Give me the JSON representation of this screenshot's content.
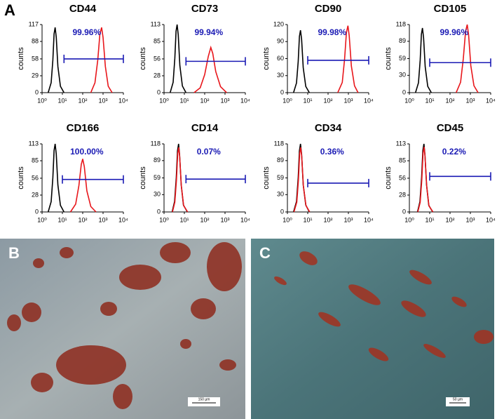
{
  "panels": {
    "A": "A"
  },
  "micrographs": [
    {
      "label": "B",
      "scale_bar": "150 µm"
    },
    {
      "label": "C",
      "scale_bar": "50 µm"
    }
  ],
  "chart_data": [
    {
      "type": "line",
      "title": "CD44",
      "ylabel": "counts",
      "annotation": "99.96%",
      "xscale": "log",
      "xlim": [
        1,
        10000
      ],
      "xticks": [
        {
          "value": 1,
          "label": "10⁰"
        },
        {
          "value": 10,
          "label": "10¹"
        },
        {
          "value": 100,
          "label": "10²"
        },
        {
          "value": 1000,
          "label": "10³"
        },
        {
          "value": 10000,
          "label": "10⁴"
        }
      ],
      "ylim": [
        0,
        117
      ],
      "yticks": [
        0,
        29,
        58,
        88,
        117
      ],
      "gate": {
        "x": [
          12,
          10000
        ],
        "y": 58,
        "color": "#1a1ab4"
      },
      "series": [
        {
          "color": "#000000",
          "x": [
            2,
            2.8,
            3.4,
            3.9,
            4.4,
            5,
            6,
            8,
            12
          ],
          "values": [
            0,
            17,
            56,
            101,
            112,
            95,
            45,
            11,
            0
          ]
        },
        {
          "color": "#e8161b",
          "x": [
            250,
            400,
            550,
            700,
            850,
            1000,
            1300,
            1800,
            2800
          ],
          "values": [
            0,
            17,
            56,
            101,
            112,
            95,
            45,
            11,
            0
          ]
        }
      ]
    },
    {
      "type": "line",
      "title": "CD73",
      "ylabel": "counts",
      "annotation": "99.94%",
      "xscale": "log",
      "xlim": [
        1,
        10000
      ],
      "xticks": [
        {
          "value": 1,
          "label": "10⁰"
        },
        {
          "value": 10,
          "label": "10¹"
        },
        {
          "value": 100,
          "label": "10²"
        },
        {
          "value": 1000,
          "label": "10³"
        },
        {
          "value": 10000,
          "label": "10⁴"
        }
      ],
      "ylim": [
        0,
        113
      ],
      "yticks": [
        0,
        28,
        56,
        85,
        113
      ],
      "gate": {
        "x": [
          12,
          10000
        ],
        "y": 52,
        "color": "#1a1ab4"
      },
      "series": [
        {
          "color": "#000000",
          "x": [
            2,
            2.8,
            3.4,
            3.9,
            4.4,
            5,
            6,
            8,
            12
          ],
          "values": [
            0,
            17,
            57,
            102,
            113,
            96,
            45,
            11,
            0
          ]
        },
        {
          "color": "#e8161b",
          "x": [
            30,
            60,
            100,
            150,
            200,
            250,
            350,
            600,
            1200
          ],
          "values": [
            0,
            8,
            30,
            60,
            75,
            65,
            35,
            10,
            0
          ]
        }
      ]
    },
    {
      "type": "line",
      "title": "CD90",
      "ylabel": "counts",
      "annotation": "99.98%",
      "xscale": "log",
      "xlim": [
        1,
        10000
      ],
      "xticks": [
        {
          "value": 1,
          "label": "10⁰"
        },
        {
          "value": 10,
          "label": "10¹"
        },
        {
          "value": 100,
          "label": "10²"
        },
        {
          "value": 1000,
          "label": "10³"
        },
        {
          "value": 10000,
          "label": "10⁴"
        }
      ],
      "ylim": [
        0,
        120
      ],
      "yticks": [
        0,
        30,
        60,
        90,
        120
      ],
      "gate": {
        "x": [
          10,
          10000
        ],
        "y": 57,
        "color": "#1a1ab4"
      },
      "series": [
        {
          "color": "#000000",
          "x": [
            2,
            2.8,
            3.4,
            3.9,
            4.4,
            5,
            6,
            8,
            12
          ],
          "values": [
            0,
            17,
            55,
            99,
            110,
            94,
            44,
            11,
            0
          ]
        },
        {
          "color": "#e8161b",
          "x": [
            300,
            500,
            650,
            800,
            950,
            1100,
            1400,
            2000,
            3000
          ],
          "values": [
            0,
            18,
            59,
            106,
            118,
            100,
            47,
            12,
            0
          ]
        }
      ]
    },
    {
      "type": "line",
      "title": "CD105",
      "ylabel": "counts",
      "annotation": "99.96%",
      "xscale": "log",
      "xlim": [
        1,
        10000
      ],
      "xticks": [
        {
          "value": 1,
          "label": "10⁰"
        },
        {
          "value": 10,
          "label": "10¹"
        },
        {
          "value": 100,
          "label": "10²"
        },
        {
          "value": 1000,
          "label": "10³"
        },
        {
          "value": 10000,
          "label": "10⁴"
        }
      ],
      "ylim": [
        0,
        118
      ],
      "yticks": [
        0,
        30,
        59,
        89,
        118
      ],
      "gate": {
        "x": [
          10,
          10000
        ],
        "y": 52,
        "color": "#1a1ab4"
      },
      "series": [
        {
          "color": "#000000",
          "x": [
            2,
            2.8,
            3.4,
            3.9,
            4.4,
            5,
            6,
            8,
            12
          ],
          "values": [
            0,
            17,
            56,
            101,
            112,
            95,
            45,
            11,
            0
          ]
        },
        {
          "color": "#e8161b",
          "x": [
            200,
            330,
            450,
            580,
            700,
            820,
            1050,
            1500,
            2400
          ],
          "values": [
            0,
            18,
            59,
            106,
            118,
            100,
            47,
            12,
            0
          ]
        }
      ]
    },
    {
      "type": "line",
      "title": "CD166",
      "ylabel": "counts",
      "annotation": "100.00%",
      "xscale": "log",
      "xlim": [
        1,
        10000
      ],
      "xticks": [
        {
          "value": 1,
          "label": "10⁰"
        },
        {
          "value": 10,
          "label": "10¹"
        },
        {
          "value": 100,
          "label": "10²"
        },
        {
          "value": 1000,
          "label": "10³"
        },
        {
          "value": 10000,
          "label": "10⁴"
        }
      ],
      "ylim": [
        0,
        113
      ],
      "yticks": [
        0,
        28,
        56,
        85,
        113
      ],
      "gate": {
        "x": [
          10,
          10000
        ],
        "y": 54,
        "color": "#1a1ab4"
      },
      "series": [
        {
          "color": "#000000",
          "x": [
            2,
            2.8,
            3.4,
            3.9,
            4.4,
            5,
            6,
            8,
            12
          ],
          "values": [
            0,
            17,
            57,
            102,
            113,
            96,
            45,
            11,
            0
          ]
        },
        {
          "color": "#e8161b",
          "x": [
            25,
            45,
            65,
            85,
            100,
            120,
            160,
            250,
            450
          ],
          "values": [
            0,
            13,
            44,
            79,
            88,
            75,
            35,
            9,
            0
          ]
        }
      ]
    },
    {
      "type": "line",
      "title": "CD14",
      "ylabel": "counts",
      "annotation": "0.07%",
      "xscale": "log",
      "xlim": [
        1,
        10000
      ],
      "xticks": [
        {
          "value": 1,
          "label": "10⁰"
        },
        {
          "value": 10,
          "label": "10¹"
        },
        {
          "value": 100,
          "label": "10²"
        },
        {
          "value": 1000,
          "label": "10³"
        },
        {
          "value": 10000,
          "label": "10⁴"
        }
      ],
      "ylim": [
        0,
        118
      ],
      "yticks": [
        0,
        30,
        59,
        89,
        118
      ],
      "gate": {
        "x": [
          12,
          10000
        ],
        "y": 57,
        "color": "#1a1ab4"
      },
      "series": [
        {
          "color": "#000000",
          "x": [
            2.5,
            3.3,
            4,
            4.6,
            5.2,
            5.8,
            7,
            9,
            14
          ],
          "values": [
            0,
            18,
            59,
            106,
            118,
            100,
            47,
            12,
            0
          ]
        },
        {
          "color": "#e8161b",
          "x": [
            2.6,
            3.4,
            4.1,
            4.7,
            5.3,
            5.9,
            7.1,
            9.2,
            14.5
          ],
          "values": [
            0,
            17,
            56,
            101,
            112,
            95,
            45,
            11,
            0
          ]
        }
      ]
    },
    {
      "type": "line",
      "title": "CD34",
      "ylabel": "counts",
      "annotation": "0.36%",
      "xscale": "log",
      "xlim": [
        1,
        10000
      ],
      "xticks": [
        {
          "value": 1,
          "label": "10⁰"
        },
        {
          "value": 10,
          "label": "10¹"
        },
        {
          "value": 100,
          "label": "10²"
        },
        {
          "value": 1000,
          "label": "10³"
        },
        {
          "value": 10000,
          "label": "10⁴"
        }
      ],
      "ylim": [
        0,
        118
      ],
      "yticks": [
        0,
        30,
        59,
        89,
        118
      ],
      "gate": {
        "x": [
          10,
          10000
        ],
        "y": 50,
        "color": "#1a1ab4"
      },
      "series": [
        {
          "color": "#000000",
          "x": [
            2,
            2.8,
            3.4,
            3.9,
            4.4,
            5,
            6,
            8,
            12
          ],
          "values": [
            0,
            18,
            59,
            106,
            118,
            100,
            47,
            12,
            0
          ]
        },
        {
          "color": "#e8161b",
          "x": [
            2.1,
            2.9,
            3.5,
            4,
            4.5,
            5.1,
            6.1,
            8.2,
            12.5
          ],
          "values": [
            0,
            17,
            56,
            101,
            112,
            95,
            45,
            11,
            0
          ]
        }
      ]
    },
    {
      "type": "line",
      "title": "CD45",
      "ylabel": "counts",
      "annotation": "0.22%",
      "xscale": "log",
      "xlim": [
        1,
        10000
      ],
      "xticks": [
        {
          "value": 1,
          "label": "10⁰"
        },
        {
          "value": 10,
          "label": "10¹"
        },
        {
          "value": 100,
          "label": "10²"
        },
        {
          "value": 1000,
          "label": "10³"
        },
        {
          "value": 10000,
          "label": "10⁴"
        }
      ],
      "ylim": [
        0,
        113
      ],
      "yticks": [
        0,
        28,
        56,
        85,
        113
      ],
      "gate": {
        "x": [
          10,
          10000
        ],
        "y": 59,
        "color": "#1a1ab4"
      },
      "series": [
        {
          "color": "#000000",
          "x": [
            2.5,
            3.3,
            4,
            4.6,
            5.2,
            5.8,
            7,
            9,
            14
          ],
          "values": [
            0,
            17,
            57,
            102,
            113,
            96,
            45,
            11,
            0
          ]
        },
        {
          "color": "#e8161b",
          "x": [
            2.6,
            3.4,
            4.1,
            4.7,
            5.3,
            5.9,
            7.1,
            9.2,
            14.5
          ],
          "values": [
            0,
            16,
            54,
            97,
            108,
            92,
            43,
            10,
            0
          ]
        }
      ]
    }
  ]
}
